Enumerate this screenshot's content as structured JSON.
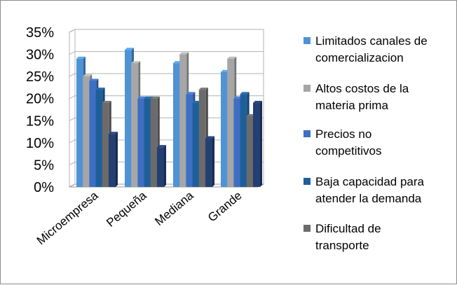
{
  "chart_data": {
    "type": "bar",
    "categories": [
      "Microempresa",
      "Pequeña",
      "Mediana",
      "Grande"
    ],
    "series": [
      {
        "name": "Limitados canales de comercializacion",
        "values": [
          29,
          31,
          28,
          26
        ],
        "color": "#4f93d6"
      },
      {
        "name": "Altos costos de la materia prima",
        "values": [
          25,
          28,
          30,
          29
        ],
        "color": "#a6a6a6"
      },
      {
        "name": "Precios no competitivos",
        "values": [
          24,
          20,
          21,
          20
        ],
        "color": "#3d6fc2"
      },
      {
        "name": "Baja capacidad para atender la demanda",
        "values": [
          22,
          20,
          19,
          21
        ],
        "color": "#1f5f99"
      },
      {
        "name": "Dificultad de transporte",
        "values": [
          19,
          20,
          22,
          16
        ],
        "color": "#6b6b6b"
      },
      {
        "name": "",
        "values": [
          12,
          9,
          11,
          19
        ],
        "color": "#243f72"
      }
    ],
    "y_ticks": [
      "0%",
      "5%",
      "10%",
      "15%",
      "20%",
      "25%",
      "30%",
      "35%"
    ],
    "ylim": [
      0,
      35
    ],
    "legend": {
      "position": "right",
      "entries": [
        {
          "lines": [
            "Limitados canales de",
            "comercializacion"
          ],
          "color": "#4f93d6"
        },
        {
          "lines": [
            "Altos costos de la",
            "materia prima"
          ],
          "color": "#a6a6a6"
        },
        {
          "lines": [
            "Precios no",
            "competitivos"
          ],
          "color": "#3d6fc2"
        },
        {
          "lines": [
            "Baja capacidad para",
            "atender la demanda"
          ],
          "color": "#1f5f99"
        },
        {
          "lines": [
            "Dificultad de",
            "transporte"
          ],
          "color": "#6b6b6b"
        }
      ]
    },
    "grid": true,
    "style": "3d-clustered-column"
  }
}
